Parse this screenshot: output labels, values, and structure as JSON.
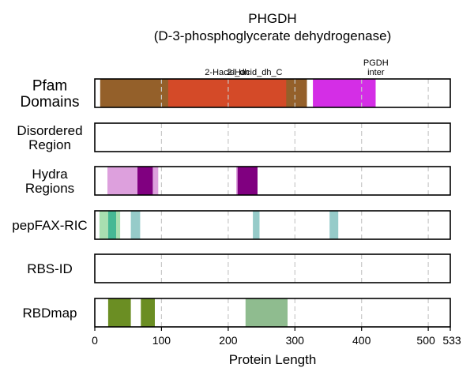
{
  "chart_data": {
    "type": "bar",
    "title": "PHGDH",
    "subtitle": "(D-3-phosphoglycerate dehydrogenase)",
    "xlabel": "Protein Length",
    "xlim": [
      0,
      533
    ],
    "x_ticks": [
      0,
      100,
      200,
      300,
      400,
      500,
      533
    ],
    "grid": "vertical dashed",
    "tracks": [
      {
        "name": "Pfam\nDomains",
        "segments": [
          {
            "start": 8,
            "end": 318,
            "color": "#94602a"
          },
          {
            "start": 110,
            "end": 287,
            "color": "#d44a28"
          },
          {
            "start": 327,
            "end": 421,
            "color": "#d42ee6"
          }
        ],
        "labels": [
          {
            "text": "2-Hacid_dh",
            "x": 165
          },
          {
            "text": "2-Hacid_dh_C",
            "x": 198
          },
          {
            "text": "PGDH\ninter",
            "x": 374
          }
        ]
      },
      {
        "name": "Disordered\nRegion",
        "segments": []
      },
      {
        "name": "Hydra\nRegions",
        "segments": [
          {
            "start": 19,
            "end": 65,
            "color": "#dda0dd"
          },
          {
            "start": 64,
            "end": 87,
            "color": "#800080"
          },
          {
            "start": 87,
            "end": 95,
            "color": "#dda0dd"
          },
          {
            "start": 212,
            "end": 214,
            "color": "#dda0dd"
          },
          {
            "start": 214,
            "end": 244,
            "color": "#800080"
          }
        ]
      },
      {
        "name": "pepFAX-RIC",
        "segments": [
          {
            "start": 7,
            "end": 20,
            "color": "#a8dfb0"
          },
          {
            "start": 20,
            "end": 32,
            "color": "#45b894"
          },
          {
            "start": 32,
            "end": 38,
            "color": "#a8dfb0"
          },
          {
            "start": 54,
            "end": 68,
            "color": "#96cbc9"
          },
          {
            "start": 237,
            "end": 247,
            "color": "#96cbc9"
          },
          {
            "start": 352,
            "end": 365,
            "color": "#96cbc9"
          }
        ]
      },
      {
        "name": "RBS-ID",
        "segments": []
      },
      {
        "name": "RBDmap",
        "segments": [
          {
            "start": 20,
            "end": 54,
            "color": "#6b8e23"
          },
          {
            "start": 69,
            "end": 90,
            "color": "#6b8e23"
          },
          {
            "start": 226,
            "end": 289,
            "color": "#8fbc8f"
          }
        ]
      }
    ]
  }
}
